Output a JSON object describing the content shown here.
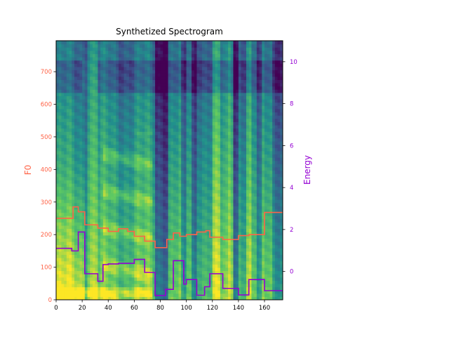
{
  "chart_data": {
    "type": "line",
    "title": "Synthetized Spectrogram",
    "xlabel": "",
    "xlim": [
      0,
      174
    ],
    "x_ticks": [
      0,
      20,
      40,
      60,
      80,
      100,
      120,
      140,
      160
    ],
    "left_axis": {
      "label": "F0",
      "color": "#ff6347",
      "ylim": [
        0,
        795
      ],
      "ticks": [
        0,
        100,
        200,
        300,
        400,
        500,
        600,
        700
      ]
    },
    "right_axis": {
      "label": "Energy",
      "color": "#9400d3",
      "ylim": [
        -1.35,
        11
      ],
      "ticks": [
        0,
        2,
        4,
        6,
        8,
        10
      ]
    },
    "background": "mel spectrogram (viridis colormap)",
    "series": [
      {
        "axis": "left",
        "color": "#ff6347",
        "step": true,
        "x": [
          0,
          13,
          17,
          22,
          32,
          40,
          48,
          55,
          60,
          68,
          76,
          85,
          90,
          95,
          100,
          108,
          115,
          118,
          128,
          140,
          148,
          160,
          174
        ],
        "values": [
          250,
          285,
          270,
          230,
          220,
          210,
          218,
          210,
          195,
          180,
          160,
          185,
          205,
          195,
          200,
          208,
          212,
          192,
          185,
          197,
          200,
          268,
          268
        ]
      },
      {
        "axis": "left",
        "color": "#9400d3",
        "step": true,
        "x": [
          0,
          12,
          17,
          22,
          32,
          36,
          40,
          48,
          60,
          68,
          76,
          84,
          90,
          98,
          100,
          108,
          114,
          118,
          128,
          140,
          148,
          160,
          174
        ],
        "values": [
          158,
          150,
          208,
          80,
          57,
          108,
          110,
          112,
          124,
          84,
          13,
          32,
          120,
          48,
          62,
          14,
          40,
          80,
          35,
          15,
          62,
          28,
          28
        ]
      }
    ]
  }
}
